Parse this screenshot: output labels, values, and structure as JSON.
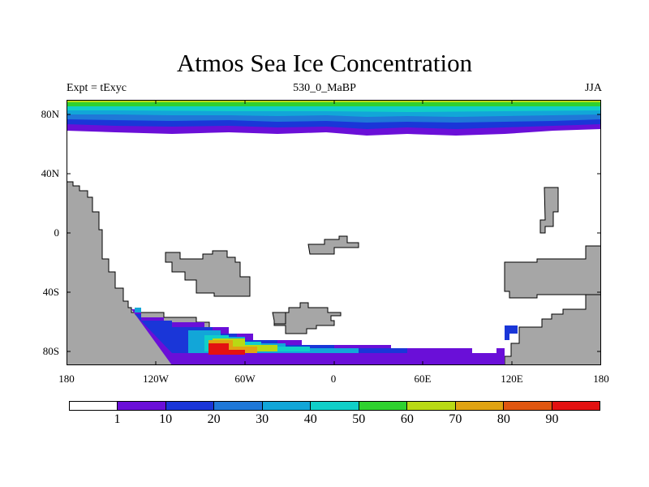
{
  "map": {
    "title": "Atmos Sea Ice Concentration",
    "left_label": "Expt = tExyc",
    "center_label": "530_0_MaBP",
    "right_label": "JJA",
    "lat_labels": [
      "80N",
      "40N",
      "0",
      "40S",
      "80S"
    ],
    "lon_labels": [
      "180",
      "120W",
      "60W",
      "0",
      "60E",
      "120E",
      "180"
    ],
    "land_color": "#a6a6a6",
    "ocean_color": "#ffffff"
  },
  "colorbar": {
    "colors": [
      "#ffffff",
      "#6a0fd8",
      "#1a36d8",
      "#1f78d8",
      "#12a6d8",
      "#10cfc8",
      "#2fd12f",
      "#b8d914",
      "#e0a312",
      "#e0560f",
      "#e31111"
    ],
    "labels": [
      "1",
      "10",
      "20",
      "30",
      "40",
      "50",
      "60",
      "70",
      "80",
      "90"
    ]
  }
}
